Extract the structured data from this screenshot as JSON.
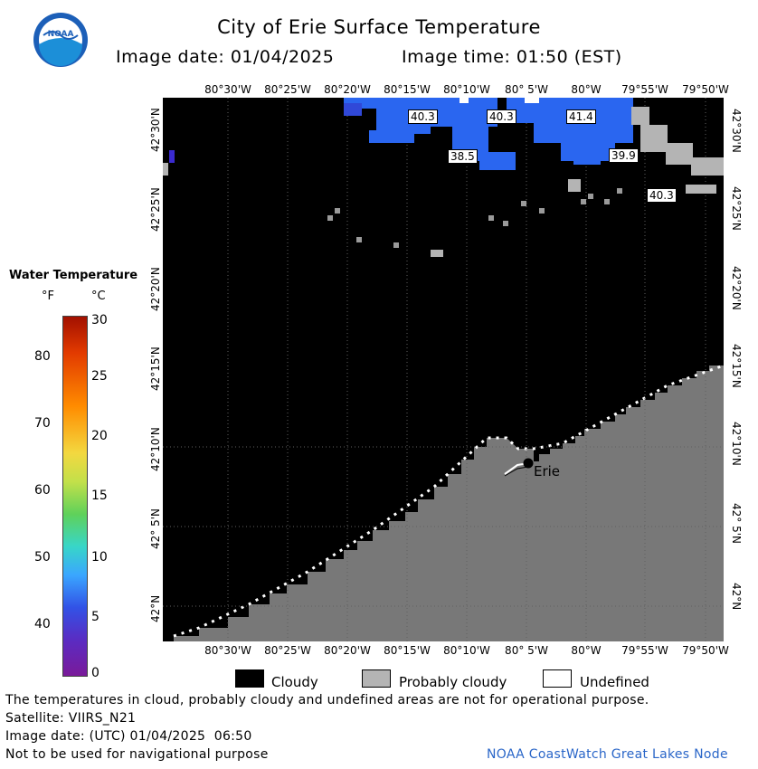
{
  "header": {
    "title": "City of Erie Surface Temperature",
    "date_text": "Image date: 01/04/2025",
    "time_text": "Image time: 01:50 (EST)",
    "logo_text": "NOAA"
  },
  "scale": {
    "title": "Water Temperature",
    "unit_f": "°F",
    "unit_c": "°C",
    "f_ticks": [
      "80",
      "70",
      "60",
      "50",
      "40"
    ],
    "c_ticks": [
      "30",
      "25",
      "20",
      "15",
      "10",
      "5",
      "0"
    ]
  },
  "map": {
    "lon_labels": [
      "80°30'W",
      "80°25'W",
      "80°20'W",
      "80°15'W",
      "80°10'W",
      "80° 5'W",
      "80°W",
      "79°55'W",
      "79°50'W"
    ],
    "lat_labels": [
      "42°30'N",
      "42°25'N",
      "42°20'N",
      "42°15'N",
      "42°10'N",
      "42° 5'N",
      "42°N"
    ],
    "city_label": "Erie",
    "temps": [
      "40.3",
      "40.3",
      "41.4",
      "38.5",
      "39.9",
      "40.3"
    ],
    "colors": {
      "cloudy": "#000000",
      "land": "#787878",
      "probably_cloudy": "#b4b4b4",
      "water_40f": "#2a66f0",
      "undefined": "#ffffff"
    }
  },
  "legend": {
    "cloudy": "Cloudy",
    "probably_cloudy": "Probably cloudy",
    "undefined": "Undefined"
  },
  "footer": {
    "note": "The temperatures in cloud, probably cloudy and undefined areas are not for operational purpose.",
    "satellite": "Satellite: VIIRS_N21",
    "utc_date": "Image date: (UTC) 01/04/2025  06:50",
    "nav_warning": "Not to be used for navigational purpose",
    "credit": "NOAA CoastWatch Great Lakes Node"
  }
}
